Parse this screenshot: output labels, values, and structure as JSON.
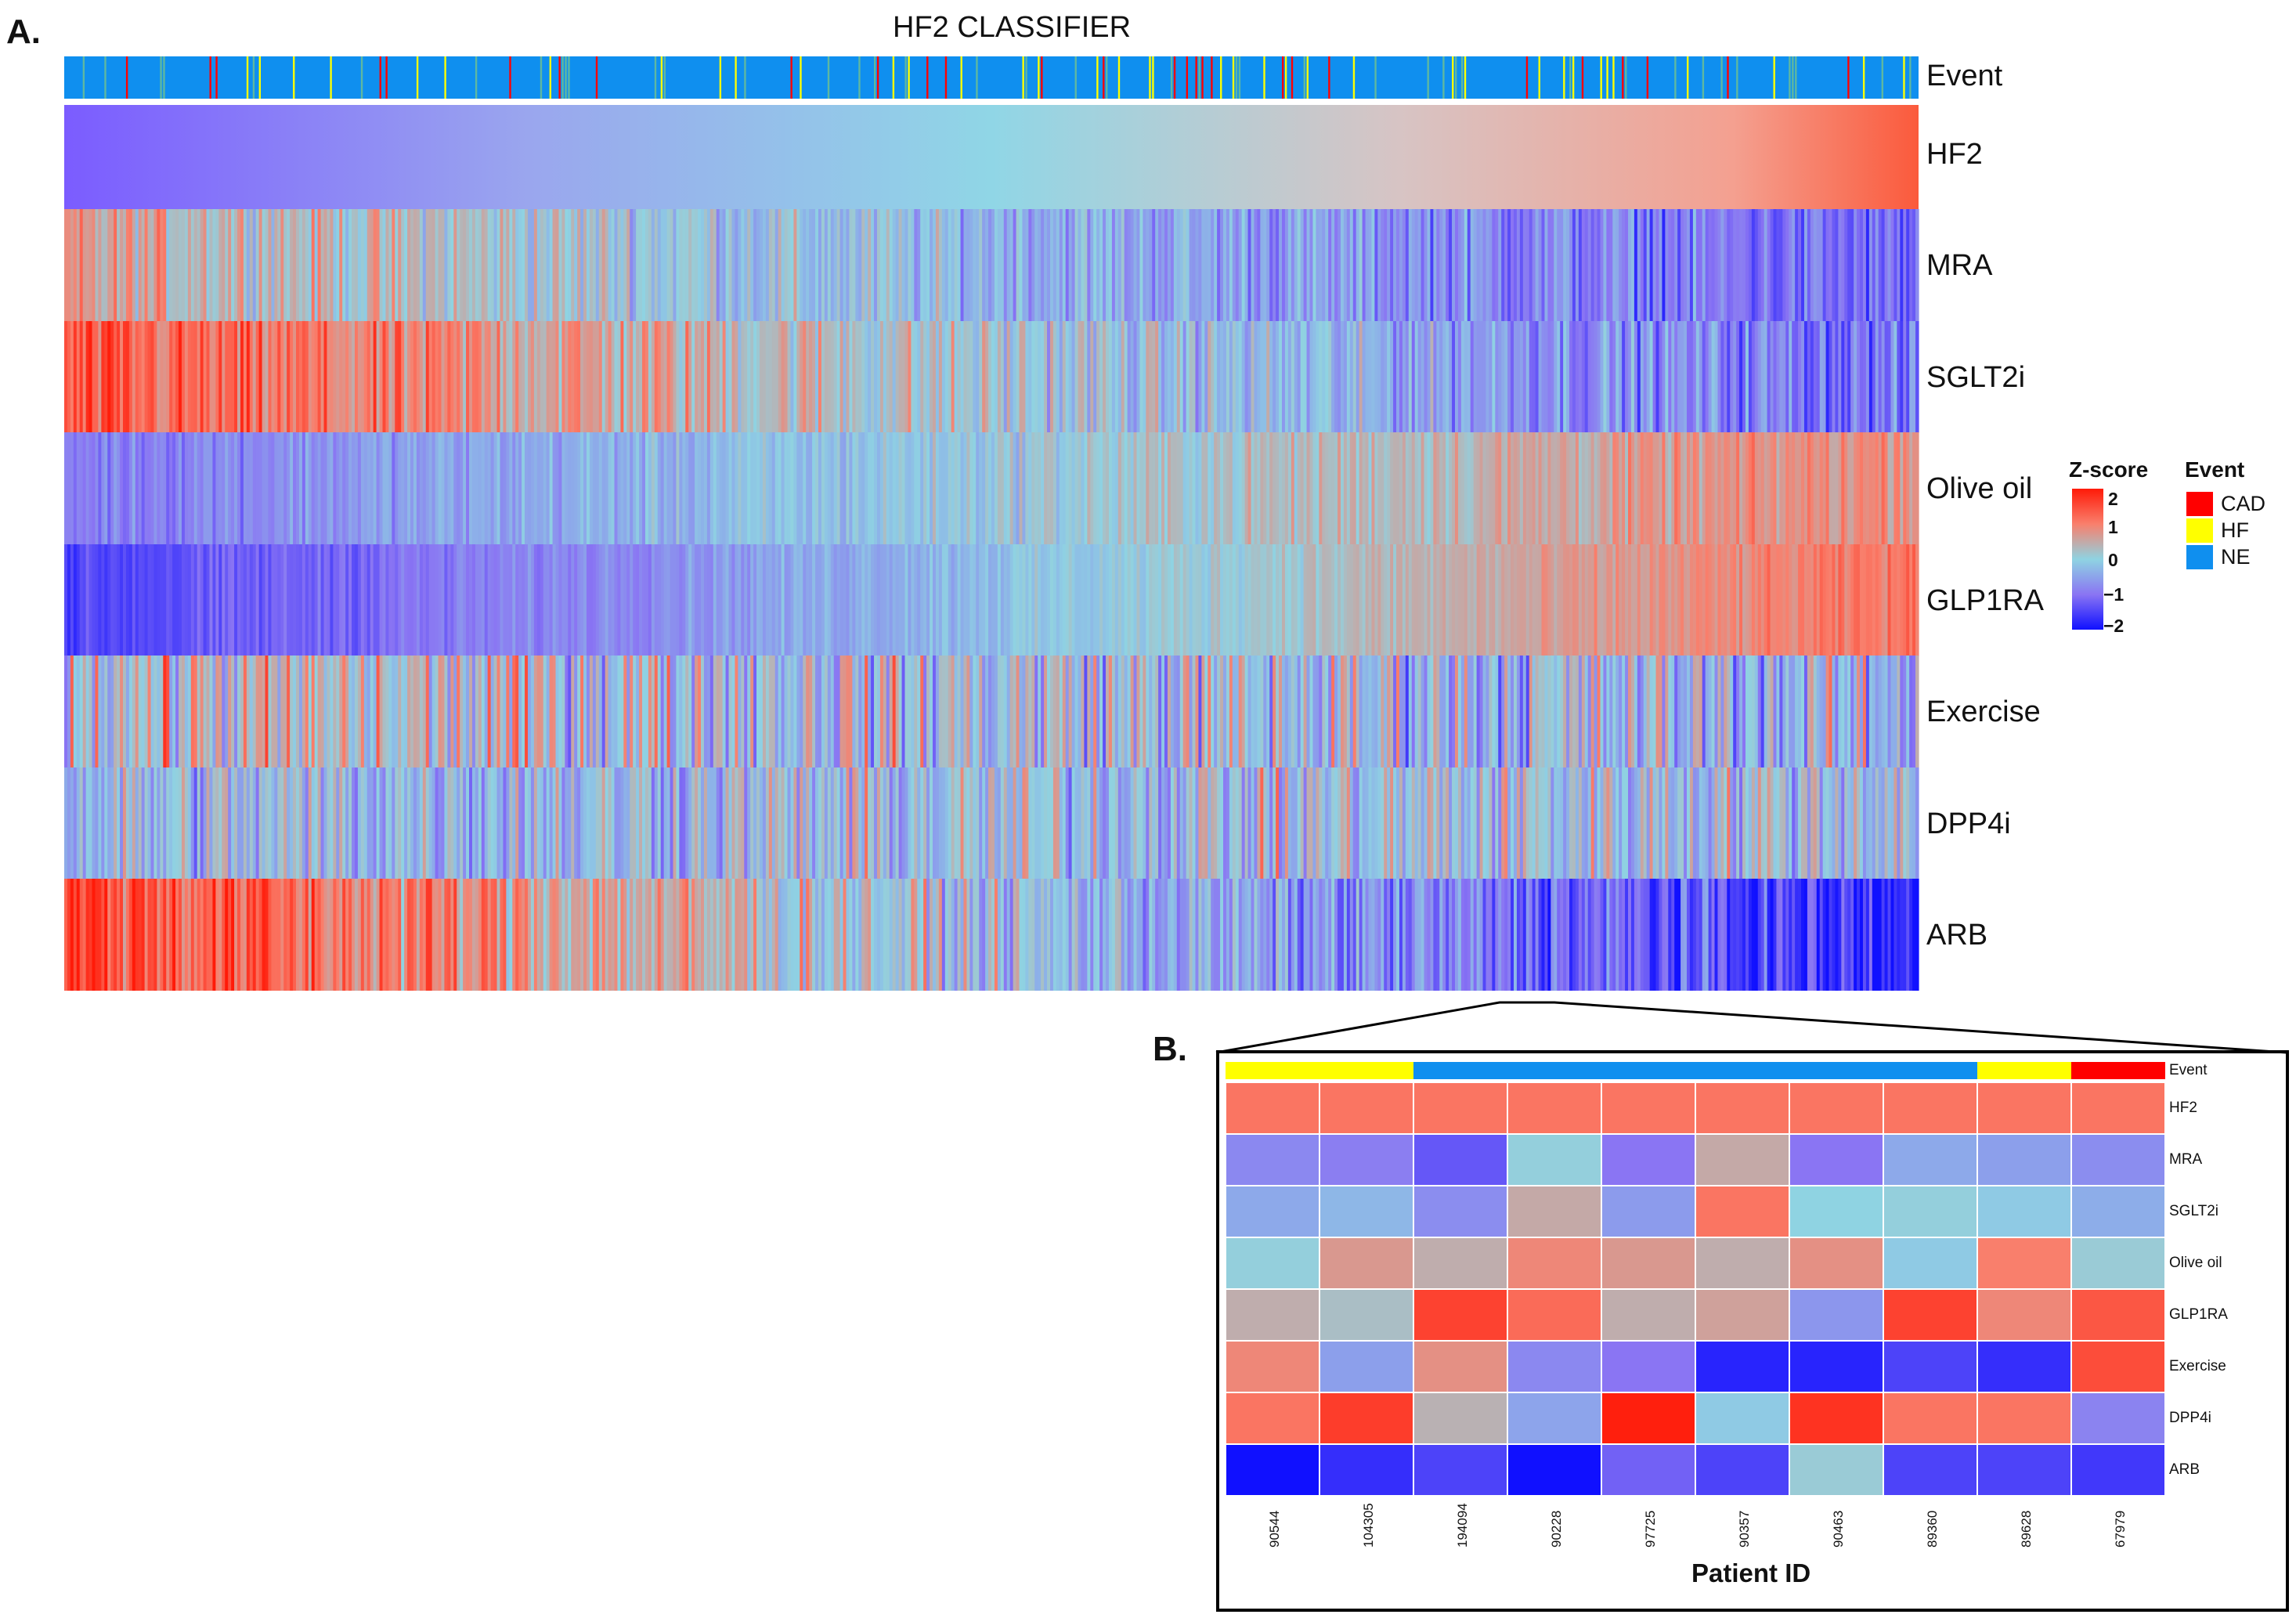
{
  "panel_a_letter": "A.",
  "panel_b_letter": "B.",
  "chart_data": [
    {
      "type": "heatmap",
      "title": "HF2 CLASSIFIER",
      "rows": [
        "Event",
        "HF2",
        "MRA",
        "SGLT2i",
        "Olive oil",
        "GLP1RA",
        "Exercise",
        "DPP4i",
        "ARB"
      ],
      "columns_sorted_by": "HF2",
      "n_columns_approx": 1000,
      "zscore_range": [
        -2,
        2
      ],
      "row_trend_by_hf2": {
        "HF2": "smooth gradient from -2 (low HF2) to 2 (high HF2)",
        "MRA": "high to low",
        "SGLT2i": "high to low",
        "Olive oil": "low to high",
        "GLP1RA": "low to high",
        "Exercise": "mixed",
        "DPP4i": "mixed",
        "ARB": "high to low"
      },
      "event_categories": [
        "CAD",
        "HF",
        "NE"
      ]
    },
    {
      "type": "heatmap",
      "xlabel": "Patient ID",
      "patient_ids": [
        "90544",
        "104305",
        "194094",
        "90228",
        "97725",
        "90357",
        "90463",
        "89360",
        "89628",
        "67979"
      ],
      "event": [
        "HF",
        "HF",
        "NE",
        "NE",
        "NE",
        "NE",
        "NE",
        "NE",
        "HF",
        "CAD"
      ],
      "rows": [
        "HF2",
        "MRA",
        "SGLT2i",
        "Olive oil",
        "GLP1RA",
        "Exercise",
        "DPP4i",
        "ARB"
      ],
      "values": [
        [
          1.1,
          1.1,
          1.1,
          1.1,
          1.1,
          1.1,
          1.1,
          1.1,
          1.1,
          1.1
        ],
        [
          -0.8,
          -0.9,
          -1.3,
          0.05,
          -1.0,
          0.5,
          -1.0,
          -0.45,
          -0.55,
          -0.75
        ],
        [
          -0.45,
          -0.3,
          -0.75,
          0.5,
          -0.6,
          1.1,
          0.0,
          0.05,
          -0.1,
          -0.4
        ],
        [
          0.05,
          0.7,
          0.45,
          0.9,
          0.7,
          0.45,
          0.8,
          -0.1,
          1.0,
          0.1
        ],
        [
          0.45,
          0.25,
          1.6,
          1.2,
          0.45,
          0.6,
          -0.65,
          1.6,
          0.9,
          1.4
        ],
        [
          0.9,
          -0.55,
          0.8,
          -0.8,
          -1.0,
          -1.8,
          -1.8,
          -1.5,
          -1.7,
          1.5
        ],
        [
          1.1,
          1.65,
          0.4,
          -0.5,
          1.95,
          -0.1,
          1.75,
          1.1,
          1.1,
          -0.85
        ],
        [
          -2.0,
          -1.7,
          -1.5,
          -2.0,
          -1.2,
          -1.5,
          0.1,
          -1.5,
          -1.5,
          -1.6
        ]
      ]
    }
  ],
  "event_row_label": "Event",
  "zscore_legend": {
    "title": "Z-score",
    "ticks": [
      "2",
      "1",
      "0",
      "−1",
      "−2"
    ],
    "colors": [
      "#ff1a08",
      "#f97f6c",
      "#8fd3e2",
      "#8a75f3",
      "#1010ff"
    ]
  },
  "event_legend": {
    "title": "Event",
    "items": [
      {
        "label": "CAD",
        "color": "#ff0000"
      },
      {
        "label": "HF",
        "color": "#ffff00"
      },
      {
        "label": "NE",
        "color": "#0f8fef"
      }
    ]
  }
}
